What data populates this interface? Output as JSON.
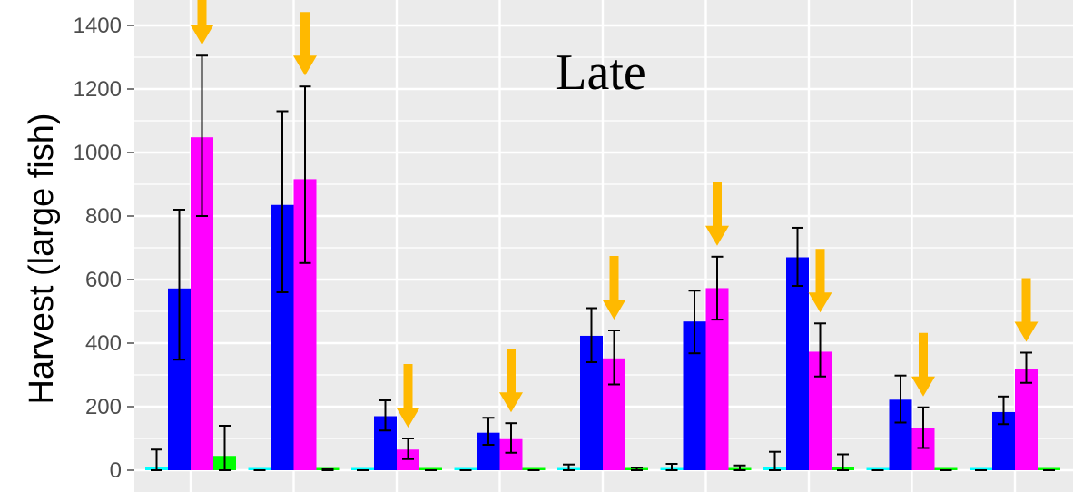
{
  "chart_data": {
    "type": "bar",
    "title": "Late",
    "xlabel": "",
    "ylabel": "Harvest (large fish)",
    "ylim": [
      0,
      1400
    ],
    "yticks": [
      0,
      200,
      400,
      600,
      800,
      1000,
      1200,
      1400
    ],
    "grid": true,
    "legend": "none",
    "groups": 9,
    "series": [
      {
        "color": "#00ffff",
        "values": [
          10,
          0,
          0,
          0,
          5,
          5,
          10,
          0,
          0
        ],
        "err_low": [
          0,
          0,
          0,
          0,
          0,
          0,
          0,
          0,
          0
        ],
        "err_high": [
          65,
          0,
          0,
          0,
          18,
          20,
          58,
          0,
          0
        ]
      },
      {
        "color": "#0000ff",
        "values": [
          572,
          835,
          170,
          118,
          423,
          468,
          670,
          222,
          183
        ],
        "err_low": [
          348,
          560,
          125,
          80,
          340,
          368,
          580,
          150,
          145
        ],
        "err_high": [
          820,
          1130,
          220,
          165,
          510,
          565,
          763,
          298,
          232
        ]
      },
      {
        "color": "#ff00ff",
        "values": [
          1048,
          916,
          65,
          98,
          352,
          573,
          373,
          133,
          318
        ],
        "err_low": [
          800,
          652,
          35,
          55,
          270,
          474,
          295,
          70,
          275
        ],
        "err_high": [
          1305,
          1208,
          100,
          148,
          440,
          672,
          462,
          198,
          370
        ]
      },
      {
        "color": "#00ff00",
        "values": [
          45,
          3,
          0,
          0,
          5,
          7,
          10,
          0,
          0
        ],
        "err_low": [
          0,
          0,
          0,
          0,
          0,
          0,
          0,
          0,
          0
        ],
        "err_high": [
          140,
          3,
          0,
          0,
          8,
          15,
          50,
          0,
          0
        ]
      }
    ],
    "arrow_color": "#ffb900",
    "arrows": [
      {
        "group": 0,
        "series": 2
      },
      {
        "group": 1,
        "series": 2
      },
      {
        "group": 2,
        "series": 2
      },
      {
        "group": 3,
        "series": 2
      },
      {
        "group": 4,
        "series": 2
      },
      {
        "group": 5,
        "series": 2
      },
      {
        "group": 6,
        "series": 2
      },
      {
        "group": 7,
        "series": 2
      },
      {
        "group": 8,
        "series": 2
      }
    ],
    "panel_background": "#ebebeb",
    "grid_color": "#ffffff"
  }
}
